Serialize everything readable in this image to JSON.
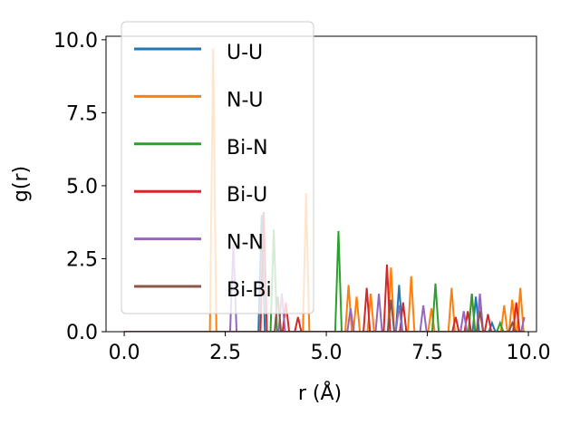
{
  "chart_data": {
    "type": "line",
    "xlabel": "r (Å)",
    "ylabel": "g(r)",
    "xlim": [
      -0.45,
      10.2
    ],
    "ylim": [
      0,
      10.12
    ],
    "xticks": [
      {
        "value": 0,
        "label": "0.0"
      },
      2.5,
      {
        "value": 5,
        "label": "5.0"
      },
      7.5,
      {
        "value": 10,
        "label": "10.0"
      }
    ],
    "yticks": [
      {
        "value": 0,
        "label": "0.0"
      },
      2.5,
      {
        "value": 5,
        "label": "5.0"
      },
      7.5,
      {
        "value": 10,
        "label": "10.0"
      }
    ],
    "grid": false,
    "legend": "upper left",
    "series": [
      {
        "name": "U-U",
        "color": "#1f77b4",
        "x": [
          0,
          3.32,
          3.4,
          3.48,
          6.72,
          6.8,
          6.88,
          8.62,
          8.7,
          8.78,
          9.02,
          9.1,
          9.18,
          9.9
        ],
        "values": [
          0,
          0,
          4.0,
          0,
          0,
          1.6,
          0,
          0,
          1.2,
          0,
          0,
          0.3,
          0,
          0
        ]
      },
      {
        "name": "N-U",
        "color": "#ff7f0e",
        "x": [
          0,
          2.12,
          2.2,
          2.28,
          4.42,
          4.5,
          4.58,
          5.47,
          5.55,
          5.63,
          5.67,
          5.75,
          5.83,
          6.02,
          6.1,
          6.18,
          6.52,
          6.6,
          6.68,
          7.02,
          7.1,
          7.18,
          7.52,
          7.6,
          7.68,
          8.02,
          8.1,
          8.18,
          8.52,
          8.6,
          8.68,
          8.72,
          8.8,
          8.88,
          9.32,
          9.4,
          9.48,
          9.52,
          9.6,
          9.68,
          9.72,
          9.8,
          9.88
        ],
        "values": [
          0,
          0,
          9.7,
          0,
          0,
          4.75,
          0,
          0,
          1.6,
          0,
          0,
          1.2,
          0,
          0,
          1.3,
          0,
          0,
          2.2,
          0,
          0,
          1.9,
          0,
          0,
          0.8,
          0,
          0,
          1.5,
          0,
          0,
          1.3,
          0,
          0,
          1.0,
          0,
          0,
          0.9,
          0,
          0,
          1.1,
          0,
          0,
          1.5,
          0
        ]
      },
      {
        "name": "Bi-N",
        "color": "#2ca02c",
        "x": [
          0,
          3.62,
          3.7,
          3.78,
          5.22,
          5.3,
          5.38,
          7.62,
          7.7,
          7.78,
          8.52,
          8.6,
          8.68,
          9.22,
          9.3,
          9.38,
          9.9
        ],
        "values": [
          0,
          0,
          3.5,
          0,
          0,
          3.45,
          0,
          0,
          1.65,
          0,
          0,
          1.3,
          0,
          0,
          0.3,
          0,
          0
        ]
      },
      {
        "name": "Bi-U",
        "color": "#d62728",
        "x": [
          0,
          3.37,
          3.45,
          3.53,
          3.92,
          4.0,
          4.08,
          4.22,
          4.3,
          4.38,
          5.92,
          6.0,
          6.08,
          6.42,
          6.5,
          6.58,
          6.82,
          6.9,
          6.98,
          8.12,
          8.2,
          8.28,
          8.42,
          8.5,
          8.58,
          8.92,
          9.0,
          9.08,
          9.62,
          9.7,
          9.78,
          9.9
        ],
        "values": [
          0,
          0,
          4.1,
          0,
          0,
          1.0,
          0,
          0,
          0.5,
          0,
          0,
          1.5,
          0,
          0,
          2.3,
          0,
          0,
          1.0,
          0,
          0,
          0.5,
          0,
          0,
          0.7,
          0,
          0,
          0.6,
          0,
          0,
          1.0,
          0,
          0
        ]
      },
      {
        "name": "N-N",
        "color": "#9467bd",
        "x": [
          0,
          2.62,
          2.7,
          2.78,
          3.82,
          3.9,
          3.98,
          5.52,
          5.6,
          5.68,
          6.22,
          6.3,
          6.38,
          6.72,
          6.8,
          6.88,
          7.32,
          7.4,
          7.48,
          8.32,
          8.4,
          8.48,
          8.72,
          8.8,
          8.88,
          9.82,
          9.9
        ],
        "values": [
          0,
          0,
          3.0,
          0,
          0,
          1.3,
          0,
          0,
          0.8,
          0,
          0,
          1.3,
          0,
          0,
          0.9,
          0,
          0,
          0.9,
          0,
          0,
          0.7,
          0,
          0,
          1.3,
          0,
          0,
          0.5
        ]
      },
      {
        "name": "Bi-Bi",
        "color": "#8c564b",
        "x": [
          0,
          3.72,
          3.8,
          3.88,
          6.52,
          6.6,
          6.68,
          8.72,
          8.8,
          8.88,
          9.52,
          9.6,
          9.68,
          9.9
        ],
        "values": [
          0,
          0,
          1.2,
          0,
          0,
          1.1,
          0,
          0,
          0.7,
          0,
          0,
          0.3,
          0,
          0
        ]
      }
    ]
  }
}
